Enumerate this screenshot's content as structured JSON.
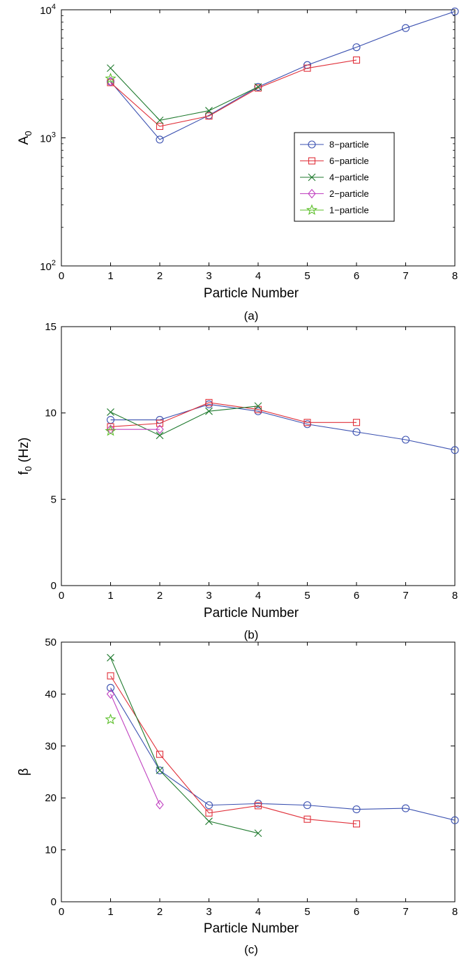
{
  "colors": {
    "8-particle": "#3a50b0",
    "6-particle": "#e0303a",
    "4-particle": "#1f7a2e",
    "2-particle": "#c040c0",
    "1-particle": "#5cbf2a"
  },
  "legend": [
    "8−particle",
    "6−particle",
    "4−particle",
    "2−particle",
    "1−particle"
  ],
  "chart_data": [
    {
      "type": "line",
      "panel": "a",
      "caption": "(a)",
      "xlabel": "Particle Number",
      "ylabel": "A",
      "ylabel_sub": "0",
      "yscale": "log",
      "xlim": [
        0,
        8
      ],
      "ylim": [
        100,
        10000
      ],
      "xticks": [
        "0",
        "1",
        "2",
        "3",
        "4",
        "5",
        "6",
        "7",
        "8"
      ],
      "yticks": [
        {
          "value": 100,
          "base": "10",
          "exp": "2"
        },
        {
          "value": 1000,
          "base": "10",
          "exp": "3"
        },
        {
          "value": 10000,
          "base": "10",
          "exp": "4"
        }
      ],
      "legend_position": "inside-right",
      "series": [
        {
          "name": "8−particle",
          "marker": "circle",
          "x": [
            1,
            2,
            3,
            4,
            5,
            6,
            7,
            8
          ],
          "y": [
            2750,
            970,
            1500,
            2500,
            3700,
            5100,
            7200,
            9700
          ]
        },
        {
          "name": "6−particle",
          "marker": "square",
          "x": [
            1,
            2,
            3,
            4,
            5,
            6
          ],
          "y": [
            2700,
            1230,
            1480,
            2450,
            3500,
            4050
          ]
        },
        {
          "name": "4−particle",
          "marker": "x",
          "x": [
            1,
            2,
            3,
            4
          ],
          "y": [
            3500,
            1370,
            1630,
            2500
          ]
        },
        {
          "name": "2−particle",
          "marker": "diamond",
          "x": [
            1
          ],
          "y": [
            2750
          ]
        },
        {
          "name": "1−particle",
          "marker": "star",
          "x": [
            1
          ],
          "y": [
            2900
          ]
        }
      ]
    },
    {
      "type": "line",
      "panel": "b",
      "caption": "(b)",
      "xlabel": "Particle Number",
      "ylabel": "f",
      "ylabel_sub": "0",
      "ylabel_suffix": " (Hz)",
      "yscale": "linear",
      "xlim": [
        0,
        8
      ],
      "ylim": [
        0,
        15
      ],
      "xticks": [
        "0",
        "1",
        "2",
        "3",
        "4",
        "5",
        "6",
        "7",
        "8"
      ],
      "yticks": [
        {
          "value": 0,
          "label": "0"
        },
        {
          "value": 5,
          "label": "5"
        },
        {
          "value": 10,
          "label": "10"
        },
        {
          "value": 15,
          "label": "15"
        }
      ],
      "series": [
        {
          "name": "8−particle",
          "marker": "circle",
          "x": [
            1,
            2,
            3,
            4,
            5,
            6,
            7,
            8
          ],
          "y": [
            9.6,
            9.6,
            10.5,
            10.1,
            9.35,
            8.9,
            8.45,
            7.85
          ]
        },
        {
          "name": "6−particle",
          "marker": "square",
          "x": [
            1,
            2,
            3,
            4,
            5,
            6
          ],
          "y": [
            9.2,
            9.4,
            10.6,
            10.2,
            9.45,
            9.45
          ]
        },
        {
          "name": "4−particle",
          "marker": "x",
          "x": [
            1,
            2,
            3,
            4
          ],
          "y": [
            10.05,
            8.7,
            10.1,
            10.4
          ]
        },
        {
          "name": "2−particle",
          "marker": "diamond",
          "x": [
            1,
            2
          ],
          "y": [
            9.05,
            9.05
          ]
        },
        {
          "name": "1−particle",
          "marker": "star",
          "x": [
            1
          ],
          "y": [
            8.95
          ]
        }
      ]
    },
    {
      "type": "line",
      "panel": "c",
      "caption": "(c)",
      "xlabel": "Particle Number",
      "ylabel": "β",
      "yscale": "linear",
      "xlim": [
        0,
        8
      ],
      "ylim": [
        0,
        50
      ],
      "xticks": [
        "0",
        "1",
        "2",
        "3",
        "4",
        "5",
        "6",
        "7",
        "8"
      ],
      "yticks": [
        {
          "value": 0,
          "label": "0"
        },
        {
          "value": 10,
          "label": "10"
        },
        {
          "value": 20,
          "label": "20"
        },
        {
          "value": 30,
          "label": "30"
        },
        {
          "value": 40,
          "label": "40"
        },
        {
          "value": 50,
          "label": "50"
        }
      ],
      "series": [
        {
          "name": "8−particle",
          "marker": "circle",
          "x": [
            1,
            2,
            3,
            4,
            5,
            6,
            7,
            8
          ],
          "y": [
            41.2,
            25.3,
            18.6,
            18.9,
            18.6,
            17.8,
            18.0,
            15.7
          ]
        },
        {
          "name": "6−particle",
          "marker": "square",
          "x": [
            1,
            2,
            3,
            4,
            5,
            6
          ],
          "y": [
            43.5,
            28.4,
            17.1,
            18.5,
            15.9,
            15.0
          ]
        },
        {
          "name": "4−particle",
          "marker": "x",
          "x": [
            1,
            2,
            3,
            4
          ],
          "y": [
            47.0,
            25.3,
            15.5,
            13.2
          ]
        },
        {
          "name": "2−particle",
          "marker": "diamond",
          "x": [
            1,
            2
          ],
          "y": [
            40.0,
            18.7
          ]
        },
        {
          "name": "1−particle",
          "marker": "star",
          "x": [
            1
          ],
          "y": [
            35.1
          ]
        }
      ]
    }
  ]
}
